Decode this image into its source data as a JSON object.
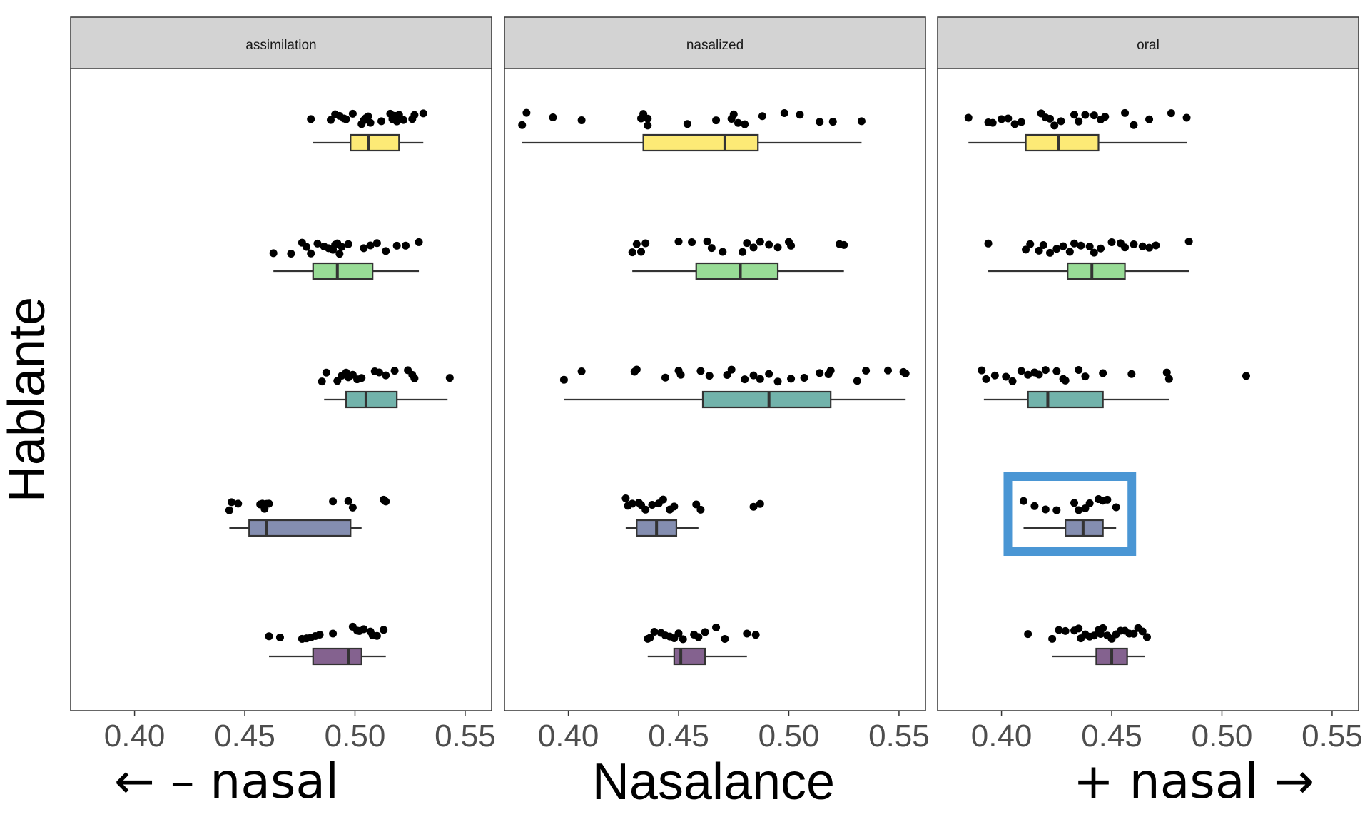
{
  "chart_data": {
    "type": "boxplot",
    "title": "",
    "xlabel": "Nasalance",
    "ylabel": "Hablante",
    "xlabel_left_annotation": "← – nasal",
    "xlabel_right_annotation": "+ nasal →",
    "xlim": [
      0.371,
      0.562
    ],
    "xticks": [
      0.4,
      0.45,
      0.5,
      0.55
    ],
    "xtick_labels": [
      "0.40",
      "0.45",
      "0.50",
      "0.55"
    ],
    "grid": false,
    "legend": "none",
    "group_colors": [
      "#fdea76",
      "#98dc96",
      "#72b3ab",
      "#848eb0",
      "#84628f"
    ],
    "highlight": {
      "facet": "oral",
      "group_index": 3,
      "color": "#4a96d4"
    },
    "facets": [
      {
        "label": "assimilation",
        "groups": [
          {
            "min": 0.481,
            "q1": 0.498,
            "median": 0.506,
            "q3": 0.52,
            "max": 0.531,
            "points": [
              0.48,
              0.489,
              0.491,
              0.493,
              0.495,
              0.496,
              0.499,
              0.503,
              0.504,
              0.505,
              0.506,
              0.507,
              0.512,
              0.516,
              0.517,
              0.518,
              0.519,
              0.52,
              0.522,
              0.526,
              0.527,
              0.531
            ]
          },
          {
            "min": 0.463,
            "q1": 0.481,
            "median": 0.492,
            "q3": 0.508,
            "max": 0.529,
            "points": [
              0.463,
              0.471,
              0.476,
              0.478,
              0.48,
              0.483,
              0.486,
              0.488,
              0.49,
              0.491,
              0.492,
              0.493,
              0.494,
              0.497,
              0.504,
              0.507,
              0.51,
              0.514,
              0.519,
              0.523,
              0.529
            ]
          },
          {
            "min": 0.486,
            "q1": 0.496,
            "median": 0.505,
            "q3": 0.519,
            "max": 0.542,
            "points": [
              0.485,
              0.487,
              0.492,
              0.494,
              0.496,
              0.497,
              0.499,
              0.501,
              0.503,
              0.509,
              0.511,
              0.514,
              0.518,
              0.524,
              0.526,
              0.527,
              0.543
            ]
          },
          {
            "min": 0.443,
            "q1": 0.452,
            "median": 0.46,
            "q3": 0.498,
            "max": 0.503,
            "points": [
              0.443,
              0.444,
              0.447,
              0.457,
              0.458,
              0.459,
              0.46,
              0.461,
              0.49,
              0.497,
              0.499,
              0.513,
              0.514
            ]
          },
          {
            "min": 0.461,
            "q1": 0.481,
            "median": 0.497,
            "q3": 0.503,
            "max": 0.514,
            "points": [
              0.461,
              0.466,
              0.476,
              0.478,
              0.48,
              0.482,
              0.484,
              0.49,
              0.499,
              0.501,
              0.502,
              0.504,
              0.507,
              0.508,
              0.51,
              0.513
            ]
          }
        ]
      },
      {
        "label": "nasalized",
        "groups": [
          {
            "min": 0.379,
            "q1": 0.434,
            "median": 0.471,
            "q3": 0.486,
            "max": 0.533,
            "points": [
              0.379,
              0.381,
              0.393,
              0.406,
              0.433,
              0.434,
              0.436,
              0.436,
              0.454,
              0.467,
              0.474,
              0.475,
              0.477,
              0.48,
              0.488,
              0.498,
              0.505,
              0.514,
              0.52,
              0.533
            ]
          },
          {
            "min": 0.429,
            "q1": 0.458,
            "median": 0.478,
            "q3": 0.495,
            "max": 0.525,
            "points": [
              0.429,
              0.431,
              0.433,
              0.435,
              0.45,
              0.456,
              0.463,
              0.465,
              0.47,
              0.479,
              0.481,
              0.484,
              0.487,
              0.491,
              0.495,
              0.5,
              0.501,
              0.523,
              0.525
            ]
          },
          {
            "min": 0.398,
            "q1": 0.461,
            "median": 0.491,
            "q3": 0.519,
            "max": 0.553,
            "points": [
              0.398,
              0.406,
              0.43,
              0.431,
              0.444,
              0.45,
              0.451,
              0.46,
              0.464,
              0.472,
              0.474,
              0.48,
              0.484,
              0.487,
              0.491,
              0.495,
              0.501,
              0.507,
              0.514,
              0.518,
              0.519,
              0.531,
              0.535,
              0.545,
              0.552,
              0.553
            ]
          },
          {
            "min": 0.426,
            "q1": 0.431,
            "median": 0.44,
            "q3": 0.449,
            "max": 0.459,
            "points": [
              0.426,
              0.427,
              0.429,
              0.432,
              0.433,
              0.435,
              0.438,
              0.441,
              0.443,
              0.446,
              0.448,
              0.458,
              0.46,
              0.484,
              0.487
            ]
          },
          {
            "min": 0.436,
            "q1": 0.448,
            "median": 0.451,
            "q3": 0.462,
            "max": 0.481,
            "points": [
              0.436,
              0.437,
              0.439,
              0.442,
              0.444,
              0.446,
              0.448,
              0.45,
              0.452,
              0.457,
              0.459,
              0.462,
              0.467,
              0.471,
              0.481,
              0.485
            ]
          }
        ]
      },
      {
        "label": "oral",
        "groups": [
          {
            "min": 0.385,
            "q1": 0.411,
            "median": 0.426,
            "q3": 0.444,
            "max": 0.484,
            "points": [
              0.385,
              0.394,
              0.396,
              0.4,
              0.403,
              0.406,
              0.409,
              0.418,
              0.42,
              0.422,
              0.424,
              0.427,
              0.433,
              0.435,
              0.438,
              0.442,
              0.445,
              0.447,
              0.456,
              0.46,
              0.467,
              0.477,
              0.484
            ]
          },
          {
            "min": 0.394,
            "q1": 0.43,
            "median": 0.441,
            "q3": 0.456,
            "max": 0.485,
            "points": [
              0.394,
              0.411,
              0.413,
              0.417,
              0.419,
              0.422,
              0.425,
              0.428,
              0.431,
              0.433,
              0.436,
              0.44,
              0.442,
              0.445,
              0.45,
              0.454,
              0.456,
              0.46,
              0.464,
              0.467,
              0.47,
              0.485
            ]
          },
          {
            "min": 0.392,
            "q1": 0.412,
            "median": 0.421,
            "q3": 0.446,
            "max": 0.476,
            "points": [
              0.391,
              0.393,
              0.397,
              0.402,
              0.405,
              0.409,
              0.412,
              0.415,
              0.417,
              0.42,
              0.425,
              0.428,
              0.429,
              0.435,
              0.438,
              0.446,
              0.459,
              0.475,
              0.476,
              0.511
            ]
          },
          {
            "min": 0.41,
            "q1": 0.429,
            "median": 0.437,
            "q3": 0.446,
            "max": 0.452,
            "points": [
              0.41,
              0.415,
              0.42,
              0.425,
              0.433,
              0.435,
              0.438,
              0.44,
              0.444,
              0.446,
              0.448,
              0.452
            ]
          },
          {
            "min": 0.423,
            "q1": 0.443,
            "median": 0.45,
            "q3": 0.457,
            "max": 0.465,
            "points": [
              0.412,
              0.423,
              0.426,
              0.429,
              0.433,
              0.435,
              0.436,
              0.438,
              0.44,
              0.442,
              0.444,
              0.445,
              0.446,
              0.448,
              0.45,
              0.452,
              0.454,
              0.456,
              0.458,
              0.46,
              0.462,
              0.464,
              0.466
            ]
          }
        ]
      }
    ]
  }
}
